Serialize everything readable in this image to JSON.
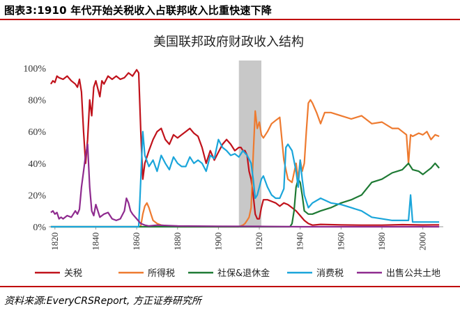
{
  "figure_title": "图表3:1910 年代开始关税收入占联邦收入比重快速下降",
  "source_note": "资料来源:EveryCRSReport, 方正证券研究所",
  "chart_data": {
    "type": "line",
    "title": "美国联邦政府财政收入结构",
    "xlabel": "",
    "ylabel": "",
    "xlim": [
      1817,
      2010
    ],
    "ylim": [
      0,
      100
    ],
    "yticks": [
      "0%",
      "20%",
      "40%",
      "60%",
      "80%",
      "100%"
    ],
    "xticks": [
      "1820",
      "1840",
      "1860",
      "1880",
      "1900",
      "1920",
      "1940",
      "1960",
      "1980",
      "2000"
    ],
    "shaded_region": {
      "x_start": 1910,
      "x_end": 1921,
      "color": "#c8c8c8"
    },
    "legend_position": "bottom",
    "series": [
      {
        "name": "关税",
        "color": "#c0121b",
        "x": [
          1818,
          1819,
          1820,
          1821,
          1822,
          1824,
          1826,
          1828,
          1830,
          1831,
          1832,
          1833,
          1834,
          1835,
          1836,
          1837,
          1838,
          1839,
          1840,
          1842,
          1843,
          1844,
          1846,
          1848,
          1850,
          1852,
          1854,
          1856,
          1858,
          1860,
          1861,
          1862,
          1863,
          1864,
          1866,
          1868,
          1870,
          1872,
          1874,
          1876,
          1878,
          1880,
          1882,
          1884,
          1886,
          1888,
          1890,
          1892,
          1894,
          1896,
          1898,
          1900,
          1902,
          1904,
          1906,
          1908,
          1910,
          1911,
          1912,
          1913,
          1914,
          1915,
          1916,
          1917,
          1918,
          1919,
          1920,
          1921,
          1922,
          1924,
          1926,
          1928,
          1930,
          1932,
          1934,
          1936,
          1938,
          1940,
          1942,
          1944,
          1946,
          1950,
          1960,
          1970,
          1980,
          1990,
          2000,
          2005,
          2008
        ],
        "values": [
          90,
          92,
          91,
          95,
          94,
          93,
          95,
          92,
          90,
          88,
          93,
          85,
          60,
          40,
          55,
          80,
          70,
          88,
          92,
          82,
          92,
          90,
          95,
          93,
          95,
          93,
          94,
          97,
          95,
          99,
          97,
          60,
          30,
          40,
          48,
          55,
          60,
          62,
          55,
          52,
          58,
          56,
          58,
          60,
          62,
          59,
          57,
          50,
          40,
          48,
          42,
          47,
          52,
          55,
          52,
          48,
          50,
          50,
          48,
          48,
          45,
          35,
          30,
          20,
          8,
          5,
          5,
          12,
          17,
          17,
          16,
          15,
          13,
          15,
          14,
          12,
          10,
          7,
          4,
          2,
          1,
          1.5,
          1.2,
          1,
          1,
          1.3,
          1.1,
          1.2,
          1.2
        ]
      },
      {
        "name": "所得税",
        "color": "#ee7a2f",
        "x": [
          1818,
          1860,
          1861,
          1862,
          1863,
          1864,
          1865,
          1866,
          1867,
          1868,
          1870,
          1872,
          1880,
          1900,
          1910,
          1912,
          1913,
          1914,
          1915,
          1916,
          1917,
          1918,
          1919,
          1920,
          1921,
          1922,
          1924,
          1926,
          1928,
          1930,
          1932,
          1934,
          1936,
          1938,
          1939,
          1940,
          1941,
          1942,
          1943,
          1944,
          1945,
          1946,
          1948,
          1950,
          1952,
          1955,
          1960,
          1965,
          1970,
          1975,
          1980,
          1985,
          1988,
          1990,
          1992,
          1993,
          1994,
          1995,
          1998,
          2000,
          2002,
          2004,
          2006,
          2008
        ],
        "values": [
          0,
          0,
          0,
          0.5,
          8,
          13,
          15,
          12,
          8,
          4,
          2,
          1,
          0,
          0,
          0,
          1,
          2,
          4,
          6,
          12,
          45,
          73,
          62,
          66,
          58,
          56,
          60,
          65,
          67,
          69,
          42,
          30,
          28,
          40,
          30,
          42,
          35,
          40,
          60,
          78,
          80,
          78,
          72,
          65,
          72,
          72,
          70,
          68,
          70,
          65,
          66,
          62,
          62,
          60,
          58,
          40,
          58,
          57,
          59,
          58,
          60,
          55,
          58,
          57
        ]
      },
      {
        "name": "社保&退休金",
        "color": "#1e7a34",
        "x": [
          1818,
          1935,
          1936,
          1937,
          1938,
          1939,
          1940,
          1941,
          1942,
          1944,
          1946,
          1950,
          1955,
          1960,
          1965,
          1970,
          1975,
          1980,
          1985,
          1990,
          1993,
          1994,
          1995,
          1998,
          2000,
          2002,
          2004,
          2006,
          2008
        ],
        "values": [
          0,
          0,
          2,
          10,
          25,
          30,
          28,
          20,
          10,
          8,
          8,
          10,
          12,
          15,
          17,
          20,
          28,
          30,
          34,
          36,
          40,
          38,
          36,
          35,
          33,
          35,
          37,
          40,
          37
        ]
      },
      {
        "name": "消费税",
        "color": "#1aa5da",
        "x": [
          1818,
          1860,
          1861,
          1862,
          1863,
          1864,
          1866,
          1868,
          1870,
          1872,
          1874,
          1876,
          1878,
          1880,
          1882,
          1884,
          1886,
          1888,
          1890,
          1892,
          1894,
          1896,
          1898,
          1900,
          1902,
          1904,
          1906,
          1908,
          1910,
          1912,
          1914,
          1916,
          1917,
          1918,
          1919,
          1920,
          1921,
          1922,
          1924,
          1926,
          1928,
          1930,
          1932,
          1933,
          1934,
          1936,
          1938,
          1939,
          1940,
          1941,
          1942,
          1944,
          1946,
          1950,
          1955,
          1960,
          1965,
          1970,
          1975,
          1980,
          1985,
          1990,
          1993,
          1994,
          1995,
          1996,
          1998,
          2000,
          2005,
          2008
        ],
        "values": [
          0,
          0,
          0,
          30,
          60,
          45,
          38,
          42,
          35,
          45,
          40,
          36,
          44,
          40,
          38,
          38,
          44,
          40,
          42,
          40,
          35,
          45,
          43,
          55,
          50,
          48,
          45,
          46,
          44,
          48,
          45,
          40,
          30,
          18,
          20,
          25,
          30,
          32,
          25,
          20,
          18,
          18,
          24,
          50,
          52,
          48,
          35,
          25,
          42,
          30,
          20,
          12,
          15,
          18,
          15,
          14,
          12,
          10,
          6,
          5,
          4,
          4,
          4,
          20,
          3,
          3,
          3,
          3,
          3,
          3
        ]
      },
      {
        "name": "出售公共土地",
        "color": "#8e2a8e",
        "x": [
          1818,
          1819,
          1820,
          1821,
          1822,
          1823,
          1824,
          1826,
          1828,
          1830,
          1831,
          1832,
          1833,
          1834,
          1835,
          1836,
          1837,
          1838,
          1839,
          1840,
          1842,
          1844,
          1846,
          1848,
          1850,
          1852,
          1854,
          1855,
          1856,
          1857,
          1858,
          1860,
          1862,
          1864,
          1866,
          1870,
          1880,
          1900,
          1920,
          1940,
          1960,
          2008
        ],
        "values": [
          9,
          10,
          8,
          9,
          5,
          6,
          5,
          7,
          6,
          10,
          8,
          11,
          25,
          35,
          45,
          52,
          25,
          10,
          7,
          14,
          6,
          8,
          9,
          5,
          4,
          5,
          10,
          18,
          15,
          10,
          8,
          5,
          2,
          1,
          0.5,
          1,
          0.5,
          0.3,
          0.2,
          0,
          0,
          0
        ]
      }
    ]
  }
}
